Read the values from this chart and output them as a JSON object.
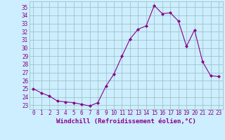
{
  "x": [
    0,
    1,
    2,
    3,
    4,
    5,
    6,
    7,
    8,
    9,
    10,
    11,
    12,
    13,
    14,
    15,
    16,
    17,
    18,
    19,
    20,
    21,
    22,
    23
  ],
  "y": [
    25.0,
    24.5,
    24.1,
    23.5,
    23.4,
    23.3,
    23.1,
    22.9,
    23.3,
    25.3,
    26.8,
    29.0,
    31.1,
    32.3,
    32.7,
    35.2,
    34.2,
    34.3,
    33.3,
    30.2,
    32.2,
    28.3,
    26.6,
    26.5
  ],
  "line_color": "#880088",
  "marker": "D",
  "marker_size": 2,
  "bg_color": "#cceeff",
  "grid_color": "#99bbbb",
  "xlabel": "Windchill (Refroidissement éolien,°C)",
  "ylim": [
    22.5,
    35.7
  ],
  "xlim": [
    -0.5,
    23.5
  ],
  "yticks": [
    23,
    24,
    25,
    26,
    27,
    28,
    29,
    30,
    31,
    32,
    33,
    34,
    35
  ],
  "xtick_labels": [
    "0",
    "1",
    "2",
    "3",
    "4",
    "5",
    "6",
    "7",
    "8",
    "9",
    "10",
    "11",
    "12",
    "13",
    "14",
    "15",
    "16",
    "17",
    "18",
    "19",
    "20",
    "21",
    "22",
    "23"
  ],
  "tick_color": "#880088",
  "label_color": "#880088",
  "tick_fontsize": 5.5,
  "xlabel_fontsize": 6.5
}
